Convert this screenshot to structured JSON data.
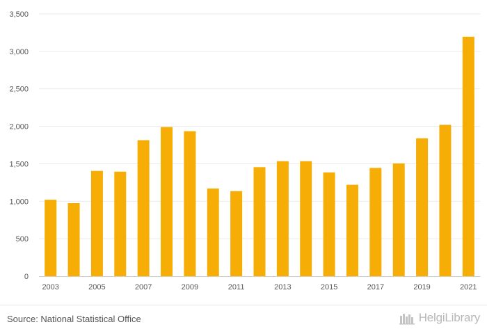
{
  "chart_data": {
    "type": "bar",
    "categories": [
      "2003",
      "2004",
      "2005",
      "2006",
      "2007",
      "2008",
      "2009",
      "2010",
      "2011",
      "2012",
      "2013",
      "2014",
      "2015",
      "2016",
      "2017",
      "2018",
      "2019",
      "2020",
      "2021"
    ],
    "values": [
      1020,
      975,
      1405,
      1395,
      1815,
      1990,
      1935,
      1170,
      1135,
      1455,
      1535,
      1535,
      1385,
      1220,
      1445,
      1505,
      1840,
      2020,
      3195
    ],
    "x_tick_labels": [
      "2003",
      "2005",
      "2007",
      "2009",
      "2011",
      "2013",
      "2015",
      "2017",
      "2019",
      "2021"
    ],
    "y_ticks": [
      0,
      500,
      1000,
      1500,
      2000,
      2500,
      3000,
      3500
    ],
    "y_tick_labels": [
      "0",
      "500",
      "1,000",
      "1,500",
      "2,000",
      "2,500",
      "3,000",
      "3,500"
    ],
    "ylim": [
      0,
      3500
    ],
    "title": "",
    "xlabel": "",
    "ylabel": "",
    "grid": true,
    "bar_color": "#f6ae07",
    "grid_color": "#e9e9e9"
  },
  "footer": {
    "source": "Source: National Statistical Office",
    "brand": "HelgiLibrary",
    "brand_icon": "library-icon"
  }
}
